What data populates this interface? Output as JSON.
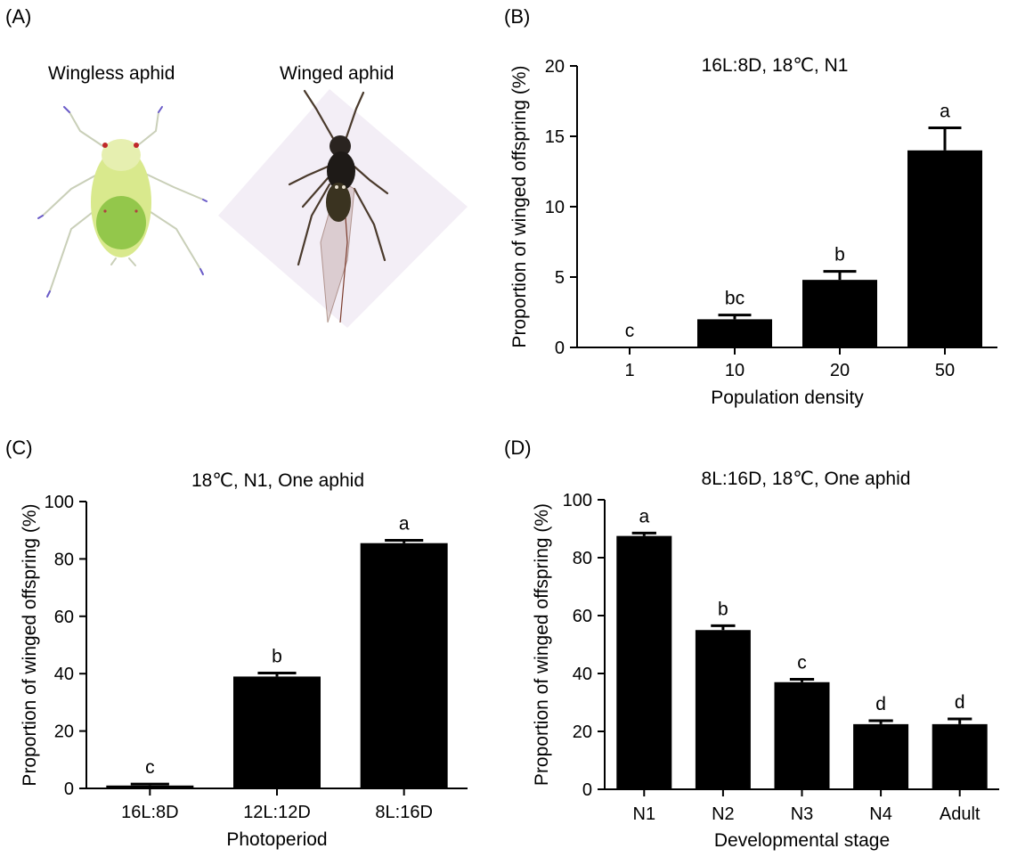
{
  "panels": {
    "a": {
      "letter": "(A)",
      "image_labels": [
        "Wingless aphid",
        "Winged aphid"
      ]
    },
    "b": {
      "letter": "(B)"
    },
    "c": {
      "letter": "(C)"
    },
    "d": {
      "letter": "(D)"
    }
  },
  "colors": {
    "bar": "#000000",
    "wingless_body": "#d6e78a",
    "wingless_abdomen": "#7fbf3a",
    "winged_body": "#1e1a17",
    "photo_background": "#f3eef6"
  },
  "chart_data": [
    {
      "id": "b",
      "type": "bar",
      "title": "16L:8D, 18℃, N1",
      "xlabel": "Population density",
      "ylabel": "Proportion of winged offspring (%)",
      "categories": [
        "1",
        "10",
        "20",
        "50"
      ],
      "values": [
        0,
        2.0,
        4.8,
        14.0
      ],
      "errors": [
        0,
        0.3,
        0.6,
        1.6
      ],
      "letters": [
        "c",
        "bc",
        "b",
        "a"
      ],
      "ylim": [
        0,
        20
      ],
      "yticks": [
        "0",
        "5",
        "10",
        "15",
        "20"
      ]
    },
    {
      "id": "c",
      "type": "bar",
      "title": "18℃, N1, One aphid",
      "xlabel": "Photoperiod",
      "ylabel": "Proportion of winged offspring (%)",
      "categories": [
        "16L:8D",
        "12L:12D",
        "8L:16D"
      ],
      "values": [
        1.0,
        39.0,
        85.5
      ],
      "errors": [
        0.5,
        1.2,
        1.0
      ],
      "letters": [
        "c",
        "b",
        "a"
      ],
      "ylim": [
        0,
        100
      ],
      "yticks": [
        "0",
        "20",
        "40",
        "60",
        "80",
        "100"
      ]
    },
    {
      "id": "d",
      "type": "bar",
      "title": "8L:16D, 18℃, One aphid",
      "xlabel": "Developmental stage",
      "ylabel": "Proportion of winged offspring (%)",
      "categories": [
        "N1",
        "N2",
        "N3",
        "N4",
        "Adult"
      ],
      "values": [
        87.5,
        55.0,
        37.0,
        22.5,
        22.5
      ],
      "errors": [
        1.0,
        1.5,
        1.0,
        1.2,
        1.8
      ],
      "letters": [
        "a",
        "b",
        "c",
        "d",
        "d"
      ],
      "ylim": [
        0,
        100
      ],
      "yticks": [
        "0",
        "20",
        "40",
        "60",
        "80",
        "100"
      ]
    }
  ]
}
